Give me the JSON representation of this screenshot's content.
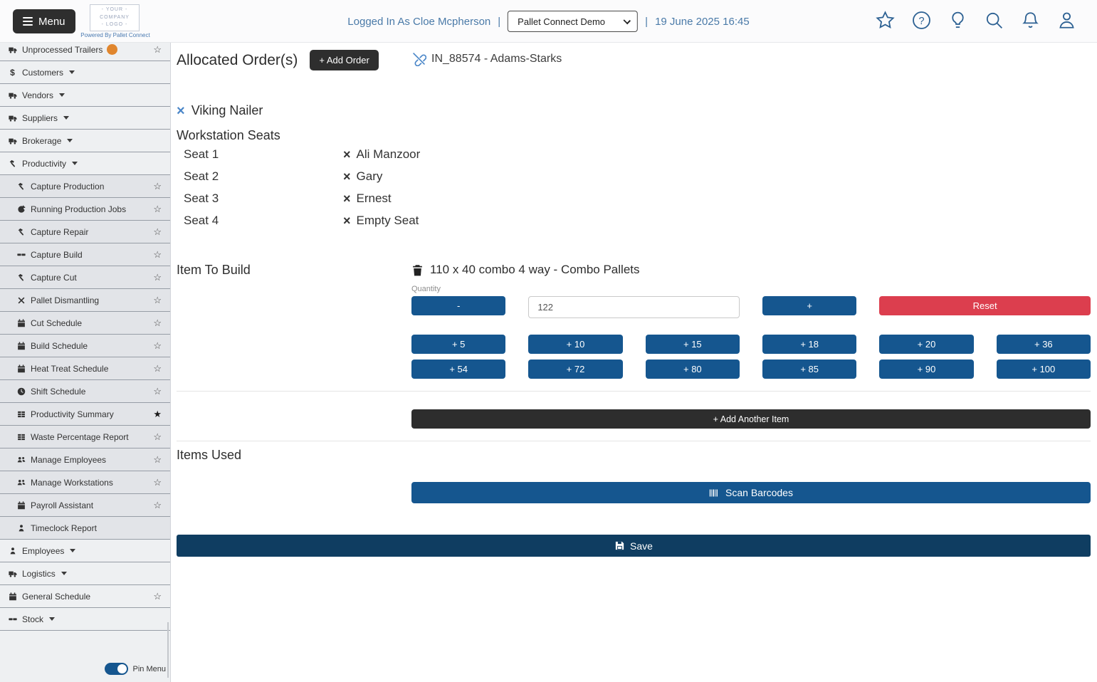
{
  "colors": {
    "primary_blue": "#15568f",
    "save_dark_blue": "#0f3d61",
    "reset_red": "#dc3e4e",
    "dark_button": "#2d2d2d",
    "header_text_blue": "#4a7aa8",
    "header_icon_blue": "#2d6193",
    "badge_orange": "#e0862e",
    "link_blue": "#4a86c8"
  },
  "header": {
    "menu_button": "Menu",
    "logo": {
      "line1": "- YOUR -",
      "line2": "COMPANY",
      "line3": "- LOGO -"
    },
    "powered_by": "Powered By Pallet Connect",
    "logged_in_as": "Logged In As Cloe Mcpherson",
    "divider": "|",
    "company_dropdown": {
      "selected": "Pallet Connect Demo"
    },
    "datetime": "19 June 2025 16:45",
    "icon_names": [
      "favorites",
      "help",
      "ideas",
      "search",
      "notifications",
      "profile"
    ]
  },
  "sidebar": {
    "items": [
      {
        "label": "Unprocessed Trailers",
        "icon": "truck",
        "star": "outline",
        "badge": true
      },
      {
        "label": "Customers",
        "icon": "dollar",
        "caret": true
      },
      {
        "label": "Vendors",
        "icon": "truck",
        "caret": true
      },
      {
        "label": "Suppliers",
        "icon": "truck",
        "caret": true
      },
      {
        "label": "Brokerage",
        "icon": "truck",
        "caret": true
      },
      {
        "label": "Productivity",
        "icon": "hammer",
        "caret": true
      },
      {
        "label": "Capture Production",
        "icon": "hammer",
        "star": "outline",
        "sub": true
      },
      {
        "label": "Running Production Jobs",
        "icon": "refresh",
        "star": "outline",
        "sub": true
      },
      {
        "label": "Capture Repair",
        "icon": "hammer",
        "star": "outline",
        "sub": true
      },
      {
        "label": "Capture Build",
        "icon": "boards",
        "star": "outline",
        "sub": true
      },
      {
        "label": "Capture Cut",
        "icon": "hammer",
        "star": "outline",
        "sub": true
      },
      {
        "label": "Pallet Dismantling",
        "icon": "tools",
        "star": "outline",
        "sub": true
      },
      {
        "label": "Cut Schedule",
        "icon": "calendar",
        "star": "outline",
        "sub": true
      },
      {
        "label": "Build Schedule",
        "icon": "calendar",
        "star": "outline",
        "sub": true
      },
      {
        "label": "Heat Treat Schedule",
        "icon": "calendar",
        "star": "outline",
        "sub": true
      },
      {
        "label": "Shift Schedule",
        "icon": "clock",
        "star": "outline",
        "sub": true
      },
      {
        "label": "Productivity Summary",
        "icon": "table",
        "star": "filled",
        "sub": true
      },
      {
        "label": "Waste Percentage Report",
        "icon": "table",
        "star": "outline",
        "sub": true
      },
      {
        "label": "Manage Employees",
        "icon": "people",
        "star": "outline",
        "sub": true
      },
      {
        "label": "Manage Workstations",
        "icon": "people",
        "star": "outline",
        "sub": true
      },
      {
        "label": "Payroll Assistant",
        "icon": "calendar",
        "star": "outline",
        "sub": true
      },
      {
        "label": "Timeclock Report",
        "icon": "person",
        "star": "none",
        "sub": true
      },
      {
        "label": "Employees",
        "icon": "person",
        "caret": true
      },
      {
        "label": "Logistics",
        "icon": "truck",
        "caret": true
      },
      {
        "label": "General Schedule",
        "icon": "calendar",
        "star": "outline"
      },
      {
        "label": "Stock",
        "icon": "boards",
        "caret": true
      }
    ],
    "pin_menu_label": "Pin Menu",
    "pin_menu_on": true
  },
  "main": {
    "allocated_orders": {
      "title": "Allocated Order(s)",
      "add_order_button": "+ Add Order",
      "order_link": "IN_88574 - Adams-Starks"
    },
    "workstation": {
      "name": "Viking Nailer",
      "seats_title": "Workstation Seats",
      "seats": [
        {
          "label": "Seat 1",
          "value": "Ali Manzoor"
        },
        {
          "label": "Seat 2",
          "value": "Gary"
        },
        {
          "label": "Seat 3",
          "value": "Ernest"
        },
        {
          "label": "Seat 4",
          "value": "Empty Seat"
        }
      ]
    },
    "item_to_build": {
      "title": "Item To Build",
      "item_name": "110 x 40 combo 4 way - Combo Pallets",
      "quantity_label": "Quantity",
      "quantity_value": "122",
      "minus_label": "-",
      "plus_label": "+",
      "reset_label": "Reset",
      "increments": [
        "+ 5",
        "+ 10",
        "+ 15",
        "+ 18",
        "+ 20",
        "+ 36",
        "+ 54",
        "+ 72",
        "+ 80",
        "+ 85",
        "+ 90",
        "+ 100"
      ],
      "add_another_item_button": "+ Add Another Item"
    },
    "items_used": {
      "title": "Items Used",
      "scan_barcodes_button": "Scan Barcodes"
    },
    "save_button": "Save"
  }
}
